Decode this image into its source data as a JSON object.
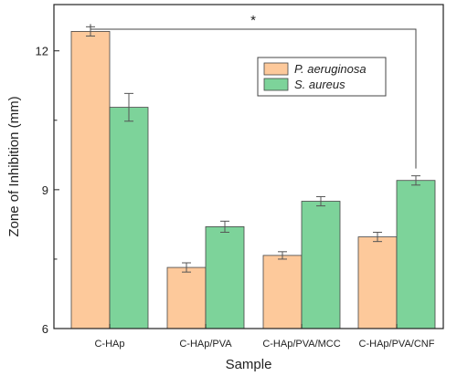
{
  "chart_data": {
    "type": "bar",
    "title": "",
    "xlabel": "Sample",
    "ylabel": "Zone of Inhibition (mm)",
    "categories": [
      "C-HAp",
      "C-HAp/PVA",
      "C-HAp/PVA/MCC",
      "C-HAp/PVA/CNF"
    ],
    "ylim": [
      6,
      13
    ],
    "yticks": [
      6,
      9,
      12
    ],
    "grid": false,
    "legend_position": "top-right",
    "series": [
      {
        "name": "P. aeruginosa",
        "color": "#FDC99B",
        "values": [
          12.42,
          7.32,
          7.58,
          7.98
        ],
        "errors": [
          0.1,
          0.1,
          0.08,
          0.1
        ]
      },
      {
        "name": "S. aureus",
        "color": "#7DD39A",
        "values": [
          10.78,
          8.2,
          8.75,
          9.2
        ],
        "errors": [
          0.3,
          0.12,
          0.1,
          0.1
        ]
      }
    ],
    "annotations": [
      {
        "text": "*",
        "type": "significance-bracket",
        "from_category": 0,
        "to_category": 3
      }
    ]
  }
}
